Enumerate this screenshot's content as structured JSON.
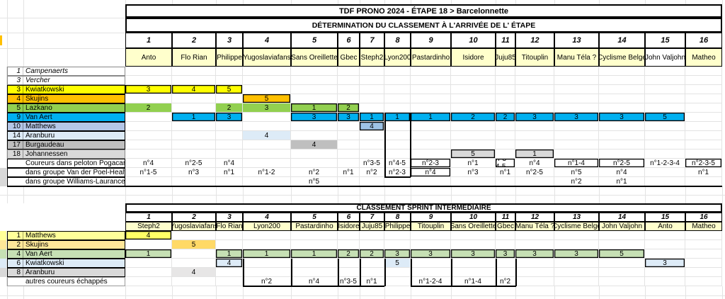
{
  "table1": {
    "title": "TDF PRONO 2024  - ÉTAPE 18 > Barcelonnette",
    "subtitle": "DÉTERMINATION DU CLASSEMENT À L'ARRIVÉE DE L' ÉTAPE",
    "columns": [
      {
        "num": "1",
        "name": "Anto",
        "bg": "#FFFFCC"
      },
      {
        "num": "2",
        "name": "Flo Rian",
        "bg": "#FFFFCC"
      },
      {
        "num": "3",
        "name": "Philippe",
        "bg": "#FFFFCC"
      },
      {
        "num": "4",
        "name": "Yugoslaviafans",
        "bg": "#FFFFCC"
      },
      {
        "num": "5",
        "name": "Sans Oreillette",
        "bg": "#FFFFCC"
      },
      {
        "num": "6",
        "name": "Gbec",
        "bg": "#FFFFCC"
      },
      {
        "num": "7",
        "name": "Steph2",
        "bg": "#FFFFCC"
      },
      {
        "num": "8",
        "name": "Lyon200",
        "bg": "#FFFFCC"
      },
      {
        "num": "9",
        "name": "Pastardinho",
        "bg": "#FFFFCC"
      },
      {
        "num": "10",
        "name": "Isidore",
        "bg": "#FFFFCC"
      },
      {
        "num": "11",
        "name": "Juju85",
        "bg": "#FFFFCC"
      },
      {
        "num": "12",
        "name": "Titouplin",
        "bg": "#FFFFCC"
      },
      {
        "num": "13",
        "name": "Manu Téla ?",
        "bg": "#FFFFCC"
      },
      {
        "num": "14",
        "name": "Cyclisme Belge",
        "bg": "#FFFFCC"
      },
      {
        "num": "15",
        "name": "John Valjohn",
        "bg": "#FFFFFF"
      },
      {
        "num": "16",
        "name": "Matheo",
        "bg": "#FFFFCC"
      }
    ],
    "rows": [
      {
        "num": "1",
        "label": "Campenaerts",
        "style": "plain",
        "cells": []
      },
      {
        "num": "3",
        "label": "Vercher",
        "style": "plain",
        "cells": []
      },
      {
        "num": "3",
        "label": "Kwiatkowski",
        "bg": "#FFFF00",
        "cells": [
          {
            "c": 1,
            "v": "3",
            "s": 1
          },
          {
            "c": 2,
            "v": "4",
            "s": 1
          },
          {
            "c": 3,
            "v": "5",
            "s": 1
          }
        ]
      },
      {
        "num": "4",
        "label": "Skujins",
        "bg": "#FFC000",
        "cells": [
          {
            "c": 4,
            "v": "5",
            "s": 1
          }
        ]
      },
      {
        "num": "5",
        "label": "Lazkano",
        "bg": "#92D050",
        "cells": [
          {
            "c": 1,
            "v": "2"
          },
          {
            "c": 3,
            "v": "2"
          },
          {
            "c": 4,
            "v": "3"
          },
          {
            "c": 5,
            "v": "1",
            "s": 1
          },
          {
            "c": 6,
            "v": "2",
            "s": 1
          }
        ]
      },
      {
        "num": "9",
        "label": "Van Aert",
        "bg": "#00B0F0",
        "cells": [
          {
            "c": 2,
            "v": "1",
            "s": 1
          },
          {
            "c": 3,
            "v": "3",
            "s": 1
          },
          {
            "c": 5,
            "v": "3",
            "s": 1
          },
          {
            "c": 6,
            "v": "3",
            "s": 1
          },
          {
            "c": 7,
            "v": "1",
            "s": 1
          },
          {
            "c": 8,
            "v": "1",
            "s": 1
          },
          {
            "c": 9,
            "v": "1",
            "s": 1
          },
          {
            "c": 10,
            "v": "2",
            "s": 1
          },
          {
            "c": 11,
            "v": "2",
            "s": 1
          },
          {
            "c": 12,
            "v": "3",
            "s": 1
          },
          {
            "c": 13,
            "v": "3",
            "s": 1
          },
          {
            "c": 14,
            "v": "3",
            "s": 1
          },
          {
            "c": 15,
            "v": "5",
            "s": 1
          }
        ]
      },
      {
        "num": "10",
        "label": "Matthews",
        "bg": "#B4C6E7",
        "cellbg": "#9DC3E6",
        "cells": [
          {
            "c": 7,
            "v": "4",
            "s": 1
          }
        ]
      },
      {
        "num": "14",
        "label": "Aranburu",
        "bg": "#DDEBF7",
        "cells": [
          {
            "c": 4,
            "v": "4"
          }
        ]
      },
      {
        "num": "17",
        "label": "Burgaudeau",
        "bg": "#BFBFBF",
        "cells": [
          {
            "c": 5,
            "v": "4"
          }
        ]
      },
      {
        "num": "18",
        "label": "Johannessen",
        "bg": "#D9D9D9",
        "style": "soft",
        "cells": [
          {
            "c": 10,
            "v": "5",
            "s": 1
          },
          {
            "c": 12,
            "v": "1",
            "s": 1
          }
        ]
      },
      {
        "num": "",
        "label": "Coureurs dans peloton Pogacar",
        "style": "note",
        "cells": [
          {
            "c": 1,
            "v": "n°4"
          },
          {
            "c": 2,
            "v": "n°2-5"
          },
          {
            "c": 3,
            "v": "n°4"
          },
          {
            "c": 7,
            "v": "n°3-5"
          },
          {
            "c": 8,
            "v": "n°4-5"
          },
          {
            "c": 9,
            "v": "n°2-3",
            "s": 1
          },
          {
            "c": 10,
            "v": "n°1"
          },
          {
            "c": 11,
            "v": "n°3-4-5",
            "s": 1
          },
          {
            "c": 12,
            "v": "n°4"
          },
          {
            "c": 13,
            "v": "n°1-4",
            "s": 1
          },
          {
            "c": 14,
            "v": "n°2-5",
            "s": 1
          },
          {
            "c": 15,
            "v": "n°1-2-3-4"
          },
          {
            "c": 16,
            "v": "n°2-3-5",
            "s": 1
          }
        ]
      },
      {
        "num": "",
        "label": "dans groupe Van der Poel-Healy",
        "style": "note",
        "gutter": "#D9D9D9",
        "cells": [
          {
            "c": 1,
            "v": "n°1-5"
          },
          {
            "c": 2,
            "v": "n°3"
          },
          {
            "c": 3,
            "v": "n°1"
          },
          {
            "c": 4,
            "v": "n°1-2"
          },
          {
            "c": 5,
            "v": "n°2"
          },
          {
            "c": 6,
            "v": "n°1"
          },
          {
            "c": 7,
            "v": "n°2"
          },
          {
            "c": 8,
            "v": "n°2-3"
          },
          {
            "c": 9,
            "v": "n°4",
            "s": 1
          },
          {
            "c": 10,
            "v": "n°3"
          },
          {
            "c": 11,
            "v": "n°1"
          },
          {
            "c": 12,
            "v": "n°2-5"
          },
          {
            "c": 13,
            "v": "n°5"
          },
          {
            "c": 14,
            "v": "n°4"
          },
          {
            "c": 16,
            "v": "n°1"
          }
        ]
      },
      {
        "num": "",
        "label": "dans groupe Williams-Laurance",
        "style": "note",
        "gutter": "#D9D9D9",
        "cells": [
          {
            "c": 5,
            "v": "n°5"
          },
          {
            "c": 13,
            "v": "n°2"
          },
          {
            "c": 14,
            "v": "n°1"
          }
        ]
      }
    ]
  },
  "table2": {
    "title": "CLASSEMENT SPRINT INTERMÉDIAIRE",
    "columns": [
      {
        "num": "1",
        "name": "Steph2",
        "bg": "#FFFFCC"
      },
      {
        "num": "2",
        "name": "Yugoslaviafans",
        "bg": "#FFFFCC"
      },
      {
        "num": "3",
        "name": "Flo Rian",
        "bg": "#FFFFCC"
      },
      {
        "num": "4",
        "name": "Lyon200",
        "bg": "#FFFFCC"
      },
      {
        "num": "5",
        "name": "Pastardinho",
        "bg": "#FFFFCC"
      },
      {
        "num": "6",
        "name": "Isidore",
        "bg": "#FFFFCC"
      },
      {
        "num": "7",
        "name": "Juju85",
        "bg": "#FFFFCC"
      },
      {
        "num": "8",
        "name": "Philippe",
        "bg": "#FFFFCC"
      },
      {
        "num": "9",
        "name": "Titouplin",
        "bg": "#FFFFCC"
      },
      {
        "num": "10",
        "name": "Sans Oreillette",
        "bg": "#FFFFCC"
      },
      {
        "num": "11",
        "name": "Gbec",
        "bg": "#FFFFCC"
      },
      {
        "num": "12",
        "name": "Manu Téla ?",
        "bg": "#FFFFCC"
      },
      {
        "num": "13",
        "name": "Cyclisme Belge",
        "bg": "#FFFFCC"
      },
      {
        "num": "14",
        "name": "John Valjohn",
        "bg": "#FFFFCC"
      },
      {
        "num": "15",
        "name": "Anto",
        "bg": "#FFFFCC"
      },
      {
        "num": "16",
        "name": "Matheo",
        "bg": "#FFFFCC"
      }
    ],
    "rows": [
      {
        "num": "1",
        "label": "Matthews",
        "bg": "#FFFF99",
        "cellbg": "#FFFF66",
        "gutter": "#FFFF99",
        "cells": [
          {
            "c": 1,
            "v": "4",
            "s": 1
          }
        ]
      },
      {
        "num": "2",
        "label": "Skujins",
        "bg": "#FFE699",
        "cellbg": "#FFD966",
        "gutter": "#FFE699",
        "cells": [
          {
            "c": 2,
            "v": "5"
          }
        ]
      },
      {
        "num": "4",
        "label": "Van Aert",
        "bg": "#C6E0B4",
        "gutter": "#C6E0B4",
        "cells": [
          {
            "c": 1,
            "v": "1",
            "s": 1
          },
          {
            "c": 3,
            "v": "1",
            "s": 1
          },
          {
            "c": 4,
            "v": "1",
            "s": 1
          },
          {
            "c": 5,
            "v": "1",
            "s": 1
          },
          {
            "c": 6,
            "v": "2",
            "s": 1
          },
          {
            "c": 7,
            "v": "2",
            "s": 1
          },
          {
            "c": 8,
            "v": "3",
            "s": 1
          },
          {
            "c": 9,
            "v": "3",
            "s": 1
          },
          {
            "c": 10,
            "v": "3",
            "s": 1
          },
          {
            "c": 11,
            "v": "3",
            "s": 1
          },
          {
            "c": 12,
            "v": "3",
            "s": 1
          },
          {
            "c": 13,
            "v": "3",
            "s": 1
          },
          {
            "c": 14,
            "v": "5",
            "s": 1
          }
        ]
      },
      {
        "num": "6",
        "label": "Kwiatkowski",
        "bg": "#DDEBF7",
        "gutter": "#DDEBF7",
        "cells": [
          {
            "c": 3,
            "v": "4",
            "s": 1
          },
          {
            "c": 8,
            "v": "5"
          },
          {
            "c": 15,
            "v": "3",
            "s": 1
          }
        ]
      },
      {
        "num": "8",
        "label": "Aranburu",
        "bg": "#D9D9D9",
        "cellbg": "#E7E6E6",
        "gutter": "#D9D9D9",
        "cells": [
          {
            "c": 2,
            "v": "4"
          }
        ]
      },
      {
        "num": "",
        "label": "autres coureurs échappés",
        "style": "note2",
        "cells": [
          {
            "c": 4,
            "v": "n°2"
          },
          {
            "c": 5,
            "v": "n°4"
          },
          {
            "c": 6,
            "v": "n°3-5"
          },
          {
            "c": 7,
            "v": "n°1"
          },
          {
            "c": 9,
            "v": "n°1-2-4"
          },
          {
            "c": 10,
            "v": "n°1-4"
          },
          {
            "c": 11,
            "v": "n°2"
          }
        ]
      }
    ]
  }
}
